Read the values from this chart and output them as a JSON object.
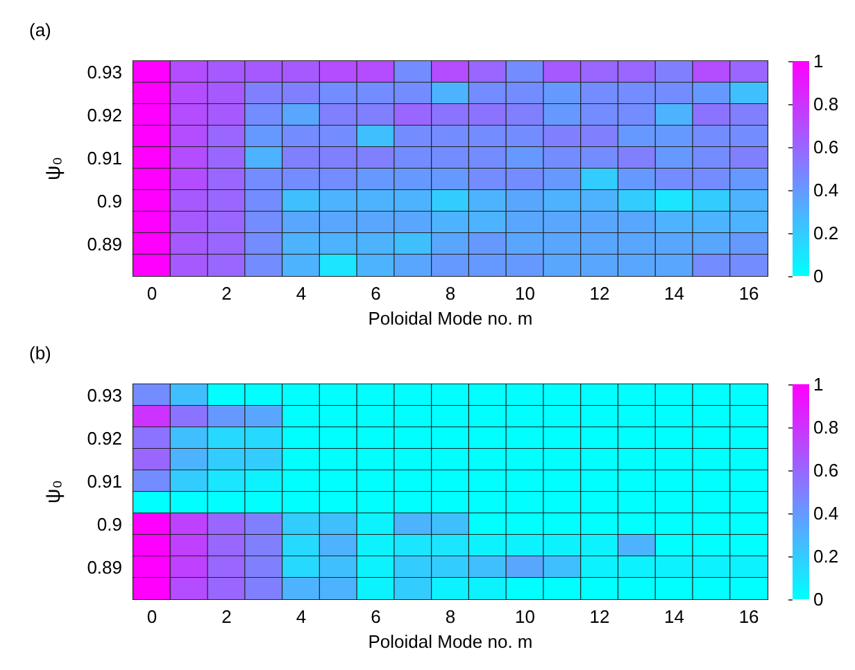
{
  "chart_data": [
    {
      "type": "heatmap",
      "title": "(a)",
      "xlabel": "Poloidal Mode no. m",
      "ylabel": "ψ₀",
      "categories": [
        "0",
        null,
        "2",
        null,
        "4",
        null,
        "6",
        null,
        "8",
        null,
        "10",
        null,
        "12",
        null,
        "14",
        null,
        "16"
      ],
      "y_categories": [
        "0.93",
        null,
        "0.92",
        null,
        "0.91",
        null,
        "0.9",
        null,
        "0.89",
        null
      ],
      "cells": [
        [
          1,
          0.7,
          0.65,
          0.65,
          0.65,
          0.7,
          0.7,
          0.45,
          0.7,
          0.6,
          0.45,
          0.65,
          0.6,
          0.6,
          0.5,
          0.7,
          0.6
        ],
        [
          1,
          0.7,
          0.65,
          0.5,
          0.5,
          0.45,
          0.45,
          0.45,
          0.3,
          0.45,
          0.45,
          0.4,
          0.45,
          0.45,
          0.45,
          0.4,
          0.25
        ],
        [
          1,
          0.7,
          0.65,
          0.45,
          0.35,
          0.5,
          0.5,
          0.6,
          0.55,
          0.55,
          0.5,
          0.4,
          0.45,
          0.45,
          0.3,
          0.55,
          0.5
        ],
        [
          1,
          0.7,
          0.6,
          0.4,
          0.45,
          0.45,
          0.25,
          0.45,
          0.45,
          0.45,
          0.45,
          0.5,
          0.5,
          0.4,
          0.4,
          0.45,
          0.45
        ],
        [
          1,
          0.7,
          0.6,
          0.3,
          0.5,
          0.5,
          0.5,
          0.45,
          0.45,
          0.45,
          0.4,
          0.45,
          0.45,
          0.5,
          0.4,
          0.45,
          0.5
        ],
        [
          1,
          0.7,
          0.6,
          0.45,
          0.45,
          0.45,
          0.4,
          0.4,
          0.4,
          0.45,
          0.45,
          0.4,
          0.2,
          0.4,
          0.45,
          0.45,
          0.4
        ],
        [
          1,
          0.65,
          0.6,
          0.45,
          0.25,
          0.3,
          0.3,
          0.3,
          0.2,
          0.3,
          0.35,
          0.3,
          0.3,
          0.2,
          0.1,
          0.2,
          0.3
        ],
        [
          1,
          0.65,
          0.6,
          0.45,
          0.35,
          0.35,
          0.35,
          0.35,
          0.3,
          0.3,
          0.35,
          0.35,
          0.35,
          0.35,
          0.3,
          0.3,
          0.3
        ],
        [
          1,
          0.65,
          0.6,
          0.45,
          0.3,
          0.3,
          0.3,
          0.25,
          0.35,
          0.4,
          0.35,
          0.35,
          0.35,
          0.35,
          0.35,
          0.35,
          0.4
        ],
        [
          1,
          0.65,
          0.6,
          0.45,
          0.3,
          0.1,
          0.3,
          0.35,
          0.4,
          0.4,
          0.4,
          0.35,
          0.35,
          0.35,
          0.35,
          0.45,
          0.45
        ]
      ],
      "clim": [
        0,
        1
      ],
      "cticks": [
        0,
        0.2,
        0.4,
        0.6,
        0.8,
        1
      ]
    },
    {
      "type": "heatmap",
      "title": "(b)",
      "xlabel": "Poloidal Mode no. m",
      "ylabel": "ψ₀",
      "categories": [
        "0",
        null,
        "2",
        null,
        "4",
        null,
        "6",
        null,
        "8",
        null,
        "10",
        null,
        "12",
        null,
        "14",
        null,
        "16"
      ],
      "y_categories": [
        "0.93",
        null,
        "0.92",
        null,
        "0.91",
        null,
        "0.9",
        null,
        "0.89",
        null
      ],
      "cells": [
        [
          0.45,
          0.25,
          0,
          0,
          0,
          0,
          0,
          0,
          0,
          0,
          0,
          0,
          0,
          0,
          0,
          0,
          0
        ],
        [
          0.8,
          0.55,
          0.4,
          0.35,
          0,
          0,
          0,
          0,
          0,
          0,
          0,
          0,
          0,
          0,
          0,
          0,
          0
        ],
        [
          0.55,
          0.25,
          0.15,
          0.15,
          0,
          0,
          0,
          0,
          0,
          0,
          0,
          0,
          0,
          0,
          0,
          0,
          0
        ],
        [
          0.6,
          0.3,
          0.2,
          0.2,
          0,
          0,
          0,
          0,
          0,
          0,
          0,
          0,
          0,
          0,
          0,
          0,
          0
        ],
        [
          0.45,
          0.2,
          0.1,
          0.05,
          0,
          0,
          0,
          0,
          0,
          0,
          0,
          0,
          0,
          0,
          0,
          0,
          0
        ],
        [
          0,
          0,
          0,
          0,
          0,
          0,
          0,
          0,
          0,
          0,
          0,
          0,
          0,
          0,
          0,
          0,
          0
        ],
        [
          1,
          0.75,
          0.6,
          0.5,
          0.2,
          0.25,
          0.05,
          0.3,
          0.25,
          0,
          0,
          0,
          0,
          0,
          0,
          0,
          0
        ],
        [
          1,
          0.75,
          0.6,
          0.5,
          0.15,
          0.3,
          0.05,
          0.1,
          0.1,
          0.05,
          0.05,
          0.05,
          0.05,
          0.3,
          0,
          0,
          0
        ],
        [
          1,
          0.75,
          0.6,
          0.5,
          0.15,
          0.25,
          0.05,
          0.2,
          0.2,
          0.25,
          0.35,
          0.25,
          0.05,
          0.05,
          0.05,
          0.05,
          0.05
        ],
        [
          1,
          0.7,
          0.6,
          0.5,
          0.3,
          0.3,
          0.05,
          0.2,
          0.05,
          0.05,
          0,
          0,
          0,
          0,
          0,
          0,
          0
        ]
      ],
      "clim": [
        0,
        1
      ],
      "cticks": [
        0,
        0.2,
        0.4,
        0.6,
        0.8,
        1
      ]
    }
  ]
}
